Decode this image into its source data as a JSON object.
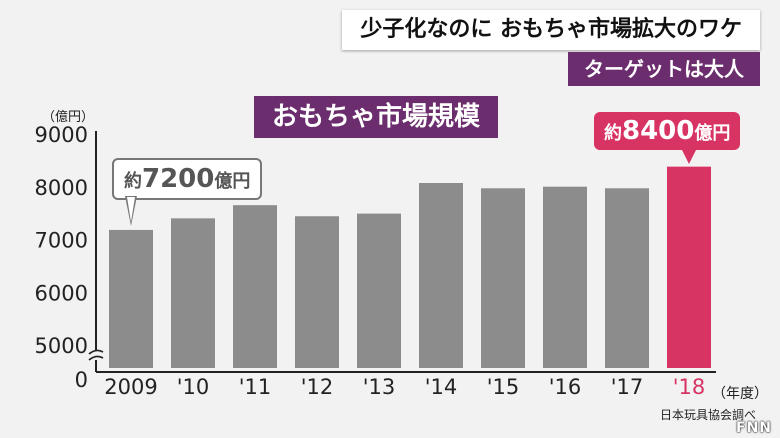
{
  "header": {
    "headline": "少子化なのに おもちゃ市場拡大のワケ",
    "subheadline": "ターゲットは大人"
  },
  "chart_banner": "おもちゃ市場規模",
  "callouts": {
    "first": {
      "prefix": "約",
      "value": "7200",
      "suffix": "億円"
    },
    "last": {
      "prefix": "約",
      "value": "8400",
      "suffix": "億円"
    }
  },
  "source": "日本玩具協会調べ",
  "logo": "FNN",
  "colors": {
    "background": "#f2f2f2",
    "bar": "#8c8c8c",
    "highlight_bar": "#d73463",
    "banner": "#6b2d6e"
  },
  "chart_data": {
    "type": "bar",
    "title": "おもちゃ市場規模",
    "ylabel": "（億円）",
    "xlabel": "（年度）",
    "categories": [
      "2009",
      "'10",
      "'11",
      "'12",
      "'13",
      "'14",
      "'15",
      "'16",
      "'17",
      "'18"
    ],
    "values": [
      7200,
      7420,
      7670,
      7460,
      7510,
      8090,
      7990,
      8020,
      7990,
      8400
    ],
    "ylim": [
      5000,
      9000
    ],
    "axis_break": true,
    "y_ticks": [
      0,
      5000,
      6000,
      7000,
      8000,
      9000
    ],
    "highlight_index": 9,
    "grid": false
  }
}
